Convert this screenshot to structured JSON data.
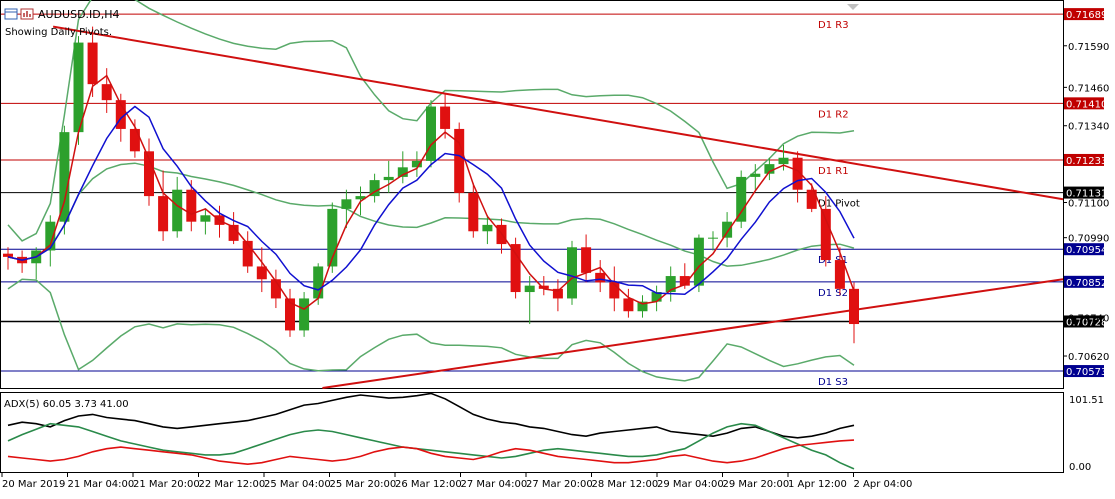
{
  "window": {
    "symbol_title": "AUDUSD.ID,H4",
    "subtitle": "Showing Daily Pivots."
  },
  "indicator": {
    "label": "ADX(5) 60.05 3.73 41.00",
    "scale_top": "101.51",
    "scale_bottom": "0.00"
  },
  "colors": {
    "bull_candle": "#2ca02c",
    "bear_candle": "#e01010",
    "ma_fast": "#d01010",
    "ma_slow": "#1010d0",
    "bands": "#5aaa6a",
    "trendline": "#d01010",
    "resistance_level": "#c00000",
    "support_level": "#000090",
    "pivot_level": "#000000",
    "adx_main": "#000000",
    "adx_plus": "#2a8a4a",
    "adx_minus": "#e01010"
  },
  "price_axis": {
    "ticks": [
      "0.71590",
      "0.71460",
      "0.71340",
      "0.71100",
      "0.70990",
      "0.70740",
      "0.70620"
    ]
  },
  "pivot_levels": [
    {
      "name": "D1 R3",
      "value": "0.71689",
      "kind": "resistance"
    },
    {
      "name": "D1 R2",
      "value": "0.71410",
      "kind": "resistance"
    },
    {
      "name": "D1 R1",
      "value": "0.71233",
      "kind": "resistance"
    },
    {
      "name": "D1 Pivot",
      "value": "0.71131",
      "kind": "pivot"
    },
    {
      "name": "D1 S1",
      "value": "0.70954",
      "kind": "support"
    },
    {
      "name": "D1 S2",
      "value": "0.70852",
      "kind": "support"
    },
    {
      "name": "D1 S3",
      "value": "0.70573",
      "kind": "support"
    }
  ],
  "current_price": "0.70728",
  "time_axis": {
    "labels": [
      "20 Mar 2019",
      "21 Mar 04:00",
      "21 Mar 20:00",
      "22 Mar 12:00",
      "25 Mar 04:00",
      "25 Mar 20:00",
      "26 Mar 12:00",
      "27 Mar 04:00",
      "27 Mar 20:00",
      "28 Mar 12:00",
      "29 Mar 04:00",
      "29 Mar 20:00",
      "1 Apr 12:00",
      "2 Apr 04:00"
    ]
  },
  "chart_data": {
    "type": "candlestick",
    "symbol": "AUDUSD.ID",
    "timeframe": "H4",
    "candles": [
      {
        "o": 0.7094,
        "h": 0.7096,
        "l": 0.7089,
        "c": 0.7093
      },
      {
        "o": 0.7093,
        "h": 0.7095,
        "l": 0.7088,
        "c": 0.7091
      },
      {
        "o": 0.7091,
        "h": 0.7096,
        "l": 0.7086,
        "c": 0.7095
      },
      {
        "o": 0.7095,
        "h": 0.7106,
        "l": 0.709,
        "c": 0.7104
      },
      {
        "o": 0.7104,
        "h": 0.7134,
        "l": 0.71,
        "c": 0.7132
      },
      {
        "o": 0.7132,
        "h": 0.7162,
        "l": 0.7128,
        "c": 0.716
      },
      {
        "o": 0.716,
        "h": 0.7165,
        "l": 0.7143,
        "c": 0.7147
      },
      {
        "o": 0.7147,
        "h": 0.7152,
        "l": 0.7138,
        "c": 0.7142
      },
      {
        "o": 0.7142,
        "h": 0.7144,
        "l": 0.7129,
        "c": 0.7133
      },
      {
        "o": 0.7133,
        "h": 0.7136,
        "l": 0.7124,
        "c": 0.7126
      },
      {
        "o": 0.7126,
        "h": 0.713,
        "l": 0.7109,
        "c": 0.7112
      },
      {
        "o": 0.7112,
        "h": 0.712,
        "l": 0.7098,
        "c": 0.7101
      },
      {
        "o": 0.7101,
        "h": 0.7118,
        "l": 0.7099,
        "c": 0.7114
      },
      {
        "o": 0.7114,
        "h": 0.7117,
        "l": 0.7101,
        "c": 0.7104
      },
      {
        "o": 0.7104,
        "h": 0.7108,
        "l": 0.71,
        "c": 0.7106
      },
      {
        "o": 0.7106,
        "h": 0.7109,
        "l": 0.7099,
        "c": 0.7103
      },
      {
        "o": 0.7103,
        "h": 0.7107,
        "l": 0.7097,
        "c": 0.7098
      },
      {
        "o": 0.7098,
        "h": 0.7101,
        "l": 0.7088,
        "c": 0.709
      },
      {
        "o": 0.709,
        "h": 0.7096,
        "l": 0.7082,
        "c": 0.7086
      },
      {
        "o": 0.7086,
        "h": 0.7089,
        "l": 0.7077,
        "c": 0.708
      },
      {
        "o": 0.708,
        "h": 0.7083,
        "l": 0.7068,
        "c": 0.707
      },
      {
        "o": 0.707,
        "h": 0.7082,
        "l": 0.7068,
        "c": 0.708
      },
      {
        "o": 0.708,
        "h": 0.7091,
        "l": 0.7078,
        "c": 0.709
      },
      {
        "o": 0.709,
        "h": 0.711,
        "l": 0.7088,
        "c": 0.7108
      },
      {
        "o": 0.7108,
        "h": 0.7114,
        "l": 0.7102,
        "c": 0.7111
      },
      {
        "o": 0.7111,
        "h": 0.7115,
        "l": 0.7106,
        "c": 0.7112
      },
      {
        "o": 0.7112,
        "h": 0.7119,
        "l": 0.711,
        "c": 0.7117
      },
      {
        "o": 0.7117,
        "h": 0.7123,
        "l": 0.7113,
        "c": 0.7118
      },
      {
        "o": 0.7118,
        "h": 0.7126,
        "l": 0.7116,
        "c": 0.7121
      },
      {
        "o": 0.7121,
        "h": 0.7126,
        "l": 0.7118,
        "c": 0.7123
      },
      {
        "o": 0.7123,
        "h": 0.7142,
        "l": 0.7121,
        "c": 0.714
      },
      {
        "o": 0.714,
        "h": 0.7144,
        "l": 0.713,
        "c": 0.7133
      },
      {
        "o": 0.7133,
        "h": 0.7135,
        "l": 0.711,
        "c": 0.7113
      },
      {
        "o": 0.7113,
        "h": 0.7116,
        "l": 0.7099,
        "c": 0.7101
      },
      {
        "o": 0.7101,
        "h": 0.7106,
        "l": 0.7097,
        "c": 0.7103
      },
      {
        "o": 0.7103,
        "h": 0.7105,
        "l": 0.7094,
        "c": 0.7097
      },
      {
        "o": 0.7097,
        "h": 0.7099,
        "l": 0.708,
        "c": 0.7082
      },
      {
        "o": 0.7082,
        "h": 0.7087,
        "l": 0.7072,
        "c": 0.7084
      },
      {
        "o": 0.7084,
        "h": 0.7087,
        "l": 0.7081,
        "c": 0.7083
      },
      {
        "o": 0.7083,
        "h": 0.7086,
        "l": 0.7076,
        "c": 0.708
      },
      {
        "o": 0.708,
        "h": 0.7098,
        "l": 0.7078,
        "c": 0.7096
      },
      {
        "o": 0.7096,
        "h": 0.71,
        "l": 0.7085,
        "c": 0.7088
      },
      {
        "o": 0.7088,
        "h": 0.7092,
        "l": 0.7082,
        "c": 0.7085
      },
      {
        "o": 0.7085,
        "h": 0.709,
        "l": 0.7076,
        "c": 0.708
      },
      {
        "o": 0.708,
        "h": 0.7083,
        "l": 0.7074,
        "c": 0.7076
      },
      {
        "o": 0.7076,
        "h": 0.7081,
        "l": 0.7074,
        "c": 0.7079
      },
      {
        "o": 0.7079,
        "h": 0.7084,
        "l": 0.7076,
        "c": 0.7082
      },
      {
        "o": 0.7082,
        "h": 0.709,
        "l": 0.7079,
        "c": 0.7087
      },
      {
        "o": 0.7087,
        "h": 0.7091,
        "l": 0.7083,
        "c": 0.7084
      },
      {
        "o": 0.7084,
        "h": 0.71,
        "l": 0.7082,
        "c": 0.7099
      },
      {
        "o": 0.7099,
        "h": 0.7101,
        "l": 0.7095,
        "c": 0.7099
      },
      {
        "o": 0.7099,
        "h": 0.7107,
        "l": 0.7096,
        "c": 0.7104
      },
      {
        "o": 0.7104,
        "h": 0.712,
        "l": 0.7102,
        "c": 0.7118
      },
      {
        "o": 0.7118,
        "h": 0.7122,
        "l": 0.7114,
        "c": 0.7119
      },
      {
        "o": 0.7119,
        "h": 0.7124,
        "l": 0.7117,
        "c": 0.7122
      },
      {
        "o": 0.7122,
        "h": 0.7128,
        "l": 0.712,
        "c": 0.7124
      },
      {
        "o": 0.7124,
        "h": 0.7126,
        "l": 0.711,
        "c": 0.7114
      },
      {
        "o": 0.7114,
        "h": 0.7116,
        "l": 0.7107,
        "c": 0.7108
      },
      {
        "o": 0.7108,
        "h": 0.7112,
        "l": 0.709,
        "c": 0.7092
      },
      {
        "o": 0.7092,
        "h": 0.7096,
        "l": 0.7081,
        "c": 0.7083
      },
      {
        "o": 0.7083,
        "h": 0.7085,
        "l": 0.7066,
        "c": 0.7072
      }
    ],
    "series": [
      {
        "name": "ADX",
        "values": [
          60,
          64,
          62,
          58,
          66,
          72,
          74,
          70,
          68,
          66,
          62,
          58,
          56,
          58,
          60,
          62,
          64,
          66,
          70,
          74,
          80,
          86,
          88,
          92,
          96,
          99,
          97,
          95,
          96,
          98,
          101,
          94,
          84,
          74,
          68,
          64,
          62,
          58,
          56,
          52,
          48,
          46,
          50,
          52,
          54,
          56,
          58,
          52,
          50,
          48,
          46,
          50,
          56,
          58,
          52,
          46,
          44,
          46,
          50,
          56,
          60
        ]
      },
      {
        "name": "+DI",
        "values": [
          40,
          48,
          55,
          62,
          60,
          58,
          52,
          46,
          40,
          36,
          32,
          28,
          26,
          24,
          22,
          22,
          24,
          30,
          36,
          42,
          48,
          52,
          54,
          52,
          48,
          44,
          40,
          36,
          32,
          30,
          28,
          26,
          24,
          22,
          20,
          18,
          20,
          24,
          28,
          30,
          28,
          26,
          24,
          22,
          20,
          20,
          22,
          26,
          30,
          40,
          50,
          58,
          62,
          60,
          52,
          44,
          36,
          28,
          22,
          12,
          4
        ]
      },
      {
        "name": "-DI",
        "values": [
          20,
          18,
          16,
          14,
          16,
          20,
          26,
          30,
          32,
          30,
          28,
          26,
          24,
          22,
          18,
          14,
          12,
          10,
          12,
          16,
          20,
          18,
          16,
          14,
          16,
          20,
          26,
          30,
          32,
          30,
          24,
          20,
          18,
          16,
          20,
          26,
          30,
          28,
          24,
          20,
          18,
          16,
          14,
          12,
          12,
          14,
          16,
          20,
          22,
          18,
          14,
          12,
          14,
          18,
          24,
          30,
          34,
          36,
          38,
          40,
          41
        ]
      }
    ],
    "ylim": [
      0.7052,
      0.7173
    ],
    "indicator_ylim": [
      0,
      101.51
    ]
  }
}
